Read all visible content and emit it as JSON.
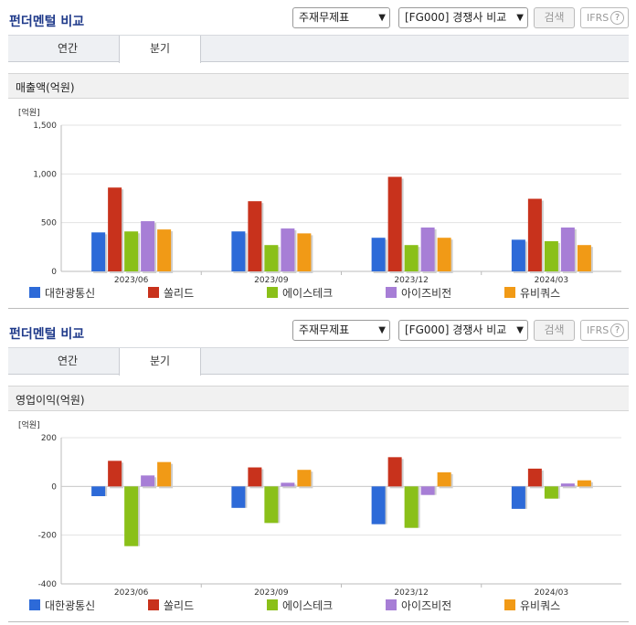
{
  "header": {
    "title": "펀더멘털 비교",
    "select_statement": "주재무제표",
    "select_compare": "[FG000] 경쟁사 비교",
    "search_label": "검색",
    "ifrs_label": "IFRS",
    "help_glyph": "?"
  },
  "tabs": [
    "연간",
    "분기"
  ],
  "active_tab": 1,
  "colors": {
    "대한광통신": "#2d6ad8",
    "쏠리드": "#c8321c",
    "에이스테크": "#8ac019",
    "아이즈비전": "#a77ed6",
    "유비쿼스": "#f19a16"
  },
  "charts": [
    {
      "section_title": "매출액(억원)",
      "unit_label": "[억원]",
      "chart_data": {
        "type": "bar",
        "categories": [
          "2023/06",
          "2023/09",
          "2023/12",
          "2024/03"
        ],
        "series": [
          {
            "name": "대한광통신",
            "values": [
              400,
              410,
              345,
              325
            ]
          },
          {
            "name": "쏠리드",
            "values": [
              860,
              720,
              970,
              745
            ]
          },
          {
            "name": "에이스테크",
            "values": [
              410,
              270,
              270,
              310
            ]
          },
          {
            "name": "아이즈비전",
            "values": [
              515,
              440,
              450,
              450
            ]
          },
          {
            "name": "유비쿼스",
            "values": [
              430,
              390,
              345,
              270
            ]
          }
        ],
        "ylim": [
          0,
          1500
        ],
        "yticks": [
          0,
          500,
          1000,
          1500
        ],
        "ytick_labels": [
          "0",
          "500",
          "1,000",
          "1,500"
        ],
        "grid": true,
        "legend": "bottom"
      }
    },
    {
      "section_title": "영업이익(억원)",
      "unit_label": "[억원]",
      "chart_data": {
        "type": "bar",
        "categories": [
          "2023/06",
          "2023/09",
          "2023/12",
          "2024/03"
        ],
        "series": [
          {
            "name": "대한광통신",
            "values": [
              -40,
              -88,
              -155,
              -92
            ]
          },
          {
            "name": "쏠리드",
            "values": [
              105,
              78,
              120,
              73
            ]
          },
          {
            "name": "에이스테크",
            "values": [
              -245,
              -150,
              -170,
              -50
            ]
          },
          {
            "name": "아이즈비전",
            "values": [
              45,
              15,
              -35,
              12
            ]
          },
          {
            "name": "유비쿼스",
            "values": [
              100,
              68,
              58,
              25
            ]
          }
        ],
        "ylim": [
          -400,
          200
        ],
        "yticks": [
          -400,
          -200,
          0,
          200
        ],
        "ytick_labels": [
          "-400",
          "-200",
          "0",
          "200"
        ],
        "grid": true,
        "legend": "bottom"
      }
    }
  ]
}
